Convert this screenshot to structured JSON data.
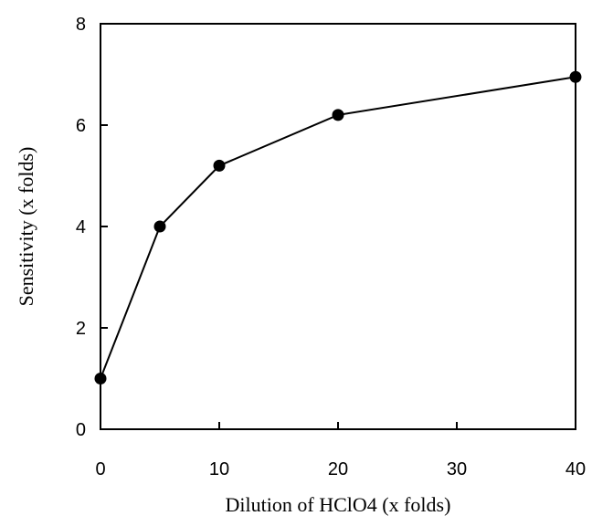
{
  "chart_data": {
    "type": "line",
    "title": "",
    "xlabel": "Dilution of HClO4 (x folds)",
    "ylabel": "Sensitivity (x folds)",
    "xlim": [
      0,
      40
    ],
    "ylim": [
      0,
      8
    ],
    "xticks": [
      0,
      10,
      20,
      30,
      40
    ],
    "yticks": [
      0,
      2,
      4,
      6,
      8
    ],
    "grid": false,
    "series": [
      {
        "x": [
          0,
          5,
          10,
          20,
          40
        ],
        "y": [
          1.0,
          4.0,
          5.2,
          6.2,
          6.95
        ],
        "marker": "circle",
        "color": "#000000"
      }
    ]
  }
}
